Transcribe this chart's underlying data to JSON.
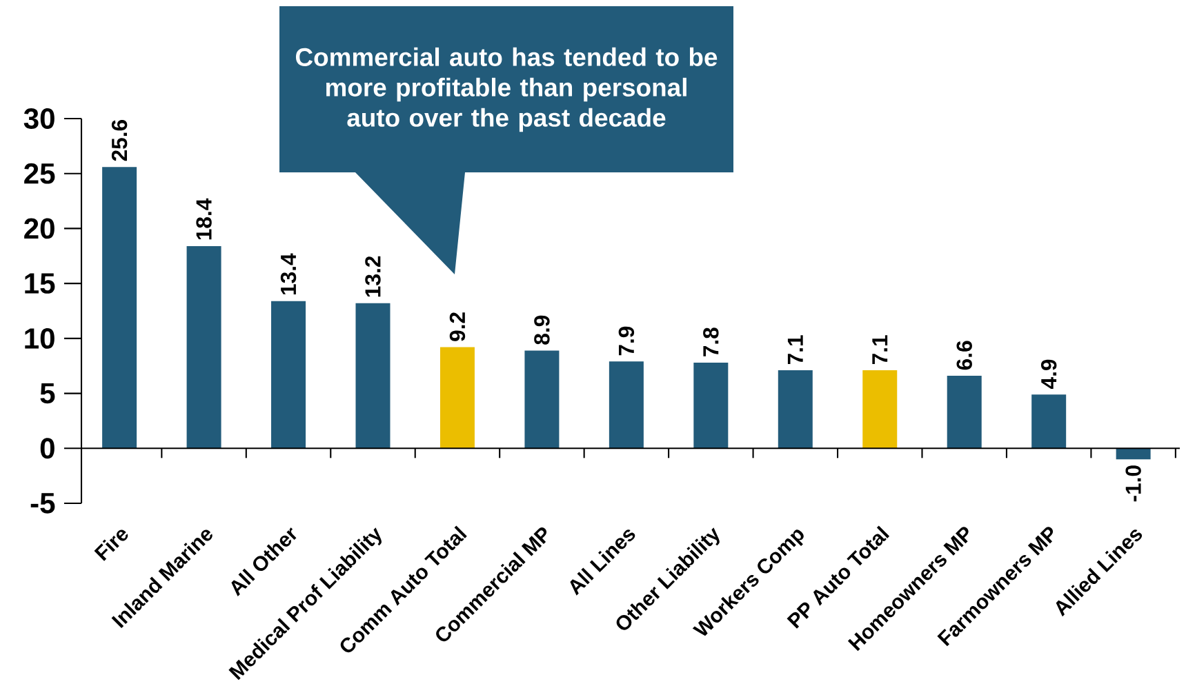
{
  "chart_data": {
    "type": "bar",
    "categories": [
      "Fire",
      "Inland Marine",
      "All Other",
      "Medical Prof Liability",
      "Comm Auto Total",
      "Commercial MP",
      "All Lines",
      "Other Liability",
      "Workers Comp",
      "PP Auto Total",
      "Homeowners MP",
      "Farmowners MP",
      "Allied Lines"
    ],
    "values": [
      25.6,
      18.4,
      13.4,
      13.2,
      9.2,
      8.9,
      7.9,
      7.8,
      7.1,
      7.1,
      6.6,
      4.9,
      -1.0
    ],
    "colors": [
      "#225b7a",
      "#225b7a",
      "#225b7a",
      "#225b7a",
      "#ebbe00",
      "#225b7a",
      "#225b7a",
      "#225b7a",
      "#225b7a",
      "#ebbe00",
      "#225b7a",
      "#225b7a",
      "#225b7a"
    ],
    "value_labels": [
      "25.6",
      "18.4",
      "13.4",
      "13.2",
      "9.2",
      "8.9",
      "7.9",
      "7.8",
      "7.1",
      "7.1",
      "6.6",
      "4.9",
      "-1.0"
    ],
    "ylim": [
      -5,
      30
    ],
    "yticks": [
      -5,
      0,
      5,
      10,
      15,
      20,
      25,
      30
    ],
    "annotations": [
      "Commercial auto has tended to be more profitable than personal auto over the past decade"
    ]
  }
}
